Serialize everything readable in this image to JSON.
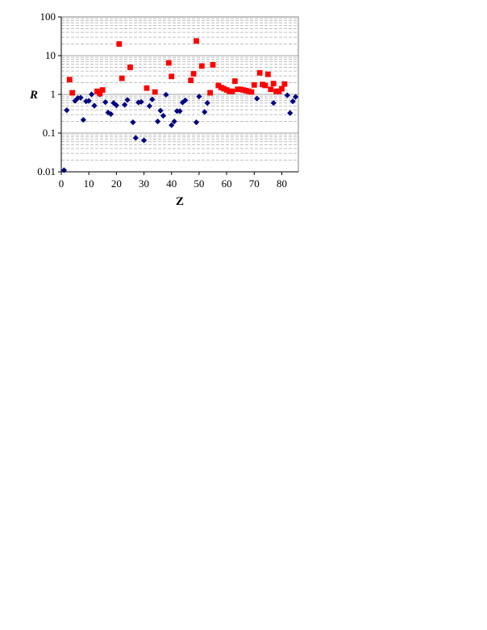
{
  "chart_data": {
    "type": "scatter",
    "xlabel": "Z",
    "ylabel": "R",
    "xlim": [
      0,
      86
    ],
    "ylim": [
      0.01,
      100
    ],
    "y_scale": "log",
    "x_ticks": [
      0,
      10,
      20,
      30,
      40,
      50,
      60,
      70,
      80
    ],
    "y_ticks": [
      0.01,
      0.1,
      1,
      10,
      100
    ],
    "y_tick_labels": [
      "0.01",
      "0.1",
      "1",
      "10",
      "100"
    ],
    "grid": "horizontal major and minor (dashed minor)",
    "legend": "none",
    "series": [
      {
        "marker": "diamond",
        "color": "#000080",
        "points": [
          [
            1,
            0.011
          ],
          [
            2,
            0.39
          ],
          [
            5,
            0.68
          ],
          [
            6,
            0.8
          ],
          [
            7,
            0.82
          ],
          [
            8,
            0.22
          ],
          [
            9,
            0.66
          ],
          [
            10,
            0.68
          ],
          [
            11,
            1.0
          ],
          [
            12,
            0.51
          ],
          [
            14,
            1.0
          ],
          [
            16,
            0.63
          ],
          [
            17,
            0.34
          ],
          [
            18,
            0.31
          ],
          [
            19,
            0.6
          ],
          [
            20,
            0.52
          ],
          [
            23,
            0.54
          ],
          [
            24,
            0.72
          ],
          [
            26,
            0.19
          ],
          [
            27,
            0.075
          ],
          [
            28,
            0.62
          ],
          [
            29,
            0.64
          ],
          [
            30,
            0.065
          ],
          [
            32,
            0.5
          ],
          [
            33,
            0.74
          ],
          [
            35,
            0.2
          ],
          [
            36,
            0.38
          ],
          [
            37,
            0.28
          ],
          [
            38,
            0.98
          ],
          [
            40,
            0.16
          ],
          [
            41,
            0.2
          ],
          [
            42,
            0.37
          ],
          [
            43,
            0.37
          ],
          [
            44,
            0.62
          ],
          [
            45,
            0.7
          ],
          [
            49,
            0.19
          ],
          [
            50,
            0.88
          ],
          [
            52,
            0.35
          ],
          [
            53,
            0.6
          ],
          [
            71,
            0.78
          ],
          [
            77,
            0.6
          ],
          [
            82,
            0.95
          ],
          [
            83,
            0.33
          ],
          [
            84,
            0.66
          ],
          [
            85,
            0.86
          ]
        ]
      },
      {
        "marker": "square",
        "color": "#ff0000",
        "points": [
          [
            3,
            2.4
          ],
          [
            4,
            1.1
          ],
          [
            13,
            1.2
          ],
          [
            14,
            1.05
          ],
          [
            15,
            1.3
          ],
          [
            21,
            20
          ],
          [
            22,
            2.6
          ],
          [
            25,
            5.0
          ],
          [
            31,
            1.45
          ],
          [
            34,
            1.15
          ],
          [
            39,
            6.5
          ],
          [
            40,
            2.9
          ],
          [
            47,
            2.3
          ],
          [
            48,
            3.4
          ],
          [
            49,
            24
          ],
          [
            51,
            5.4
          ],
          [
            54,
            1.1
          ],
          [
            55,
            5.8
          ],
          [
            57,
            1.7
          ],
          [
            58,
            1.5
          ],
          [
            59,
            1.4
          ],
          [
            60,
            1.3
          ],
          [
            61,
            1.2
          ],
          [
            62,
            1.2
          ],
          [
            63,
            2.2
          ],
          [
            64,
            1.35
          ],
          [
            65,
            1.35
          ],
          [
            66,
            1.3
          ],
          [
            67,
            1.25
          ],
          [
            68,
            1.2
          ],
          [
            69,
            1.15
          ],
          [
            70,
            1.75
          ],
          [
            72,
            3.6
          ],
          [
            73,
            1.8
          ],
          [
            74,
            1.7
          ],
          [
            75,
            3.3
          ],
          [
            76,
            1.35
          ],
          [
            77,
            1.9
          ],
          [
            78,
            1.2
          ],
          [
            79,
            1.2
          ],
          [
            80,
            1.4
          ],
          [
            81,
            1.85
          ]
        ]
      }
    ]
  }
}
